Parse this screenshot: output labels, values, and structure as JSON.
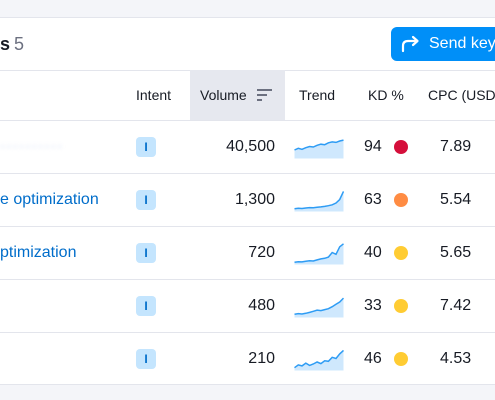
{
  "header": {
    "title_prefix": "s",
    "count": "5",
    "send_button_label": "Send key"
  },
  "columns": {
    "intent": "Intent",
    "volume": "Volume",
    "trend": "Trend",
    "kd": "KD %",
    "cpc": "CPC (USD)"
  },
  "rows": [
    {
      "keyword": "··········",
      "blurred": true,
      "intent": "I",
      "volume": "40,500",
      "kd": "94",
      "kd_color": "#d50f3b",
      "cpc": "7.89",
      "trend": [
        0.35,
        0.42,
        0.38,
        0.45,
        0.5,
        0.48,
        0.55,
        0.6,
        0.58,
        0.66,
        0.7,
        0.68,
        0.74,
        0.78
      ]
    },
    {
      "keyword": "e optimization",
      "blurred": false,
      "intent": "I",
      "volume": "1,300",
      "kd": "63",
      "kd_color": "#ff8c43",
      "cpc": "5.54",
      "trend": [
        0.1,
        0.12,
        0.11,
        0.13,
        0.15,
        0.14,
        0.16,
        0.18,
        0.2,
        0.23,
        0.27,
        0.35,
        0.5,
        0.85
      ]
    },
    {
      "keyword": "ptimization",
      "blurred": false,
      "intent": "I",
      "volume": "720",
      "kd": "40",
      "kd_color": "#ffcc33",
      "cpc": "5.65",
      "trend": [
        0.08,
        0.1,
        0.09,
        0.12,
        0.14,
        0.13,
        0.18,
        0.22,
        0.25,
        0.3,
        0.5,
        0.42,
        0.75,
        0.88
      ]
    },
    {
      "keyword": "",
      "blurred": false,
      "intent": "I",
      "volume": "480",
      "kd": "33",
      "kd_color": "#ffcc33",
      "cpc": "7.42",
      "trend": [
        0.12,
        0.15,
        0.13,
        0.16,
        0.2,
        0.25,
        0.3,
        0.28,
        0.32,
        0.36,
        0.45,
        0.55,
        0.65,
        0.82
      ]
    },
    {
      "keyword": "",
      "blurred": false,
      "intent": "I",
      "volume": "210",
      "kd": "46",
      "kd_color": "#ffcc33",
      "cpc": "4.53",
      "trend": [
        0.1,
        0.22,
        0.18,
        0.3,
        0.2,
        0.26,
        0.35,
        0.28,
        0.4,
        0.38,
        0.55,
        0.5,
        0.7,
        0.85
      ]
    }
  ]
}
